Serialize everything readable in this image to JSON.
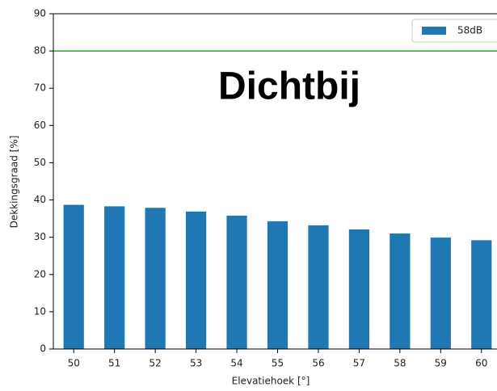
{
  "chart_data": {
    "type": "bar",
    "annotation": "Dichtbij",
    "xlabel": "Elevatiehoek [°]",
    "ylabel": "Dekkingsgraad [%]",
    "categories": [
      "50",
      "51",
      "52",
      "53",
      "54",
      "55",
      "56",
      "57",
      "58",
      "59",
      "60"
    ],
    "series": [
      {
        "name": "58dB",
        "color": "#1f77b4",
        "values": [
          38.7,
          38.3,
          37.9,
          36.9,
          35.8,
          34.3,
          33.2,
          32.1,
          31.0,
          29.9,
          29.2
        ]
      }
    ],
    "reference_line": {
      "value": 80,
      "color": "#2ca02c"
    },
    "ylim": [
      0,
      90
    ],
    "yticks": [
      0,
      10,
      20,
      30,
      40,
      50,
      60,
      70,
      80,
      90
    ],
    "legend": "upper right"
  }
}
